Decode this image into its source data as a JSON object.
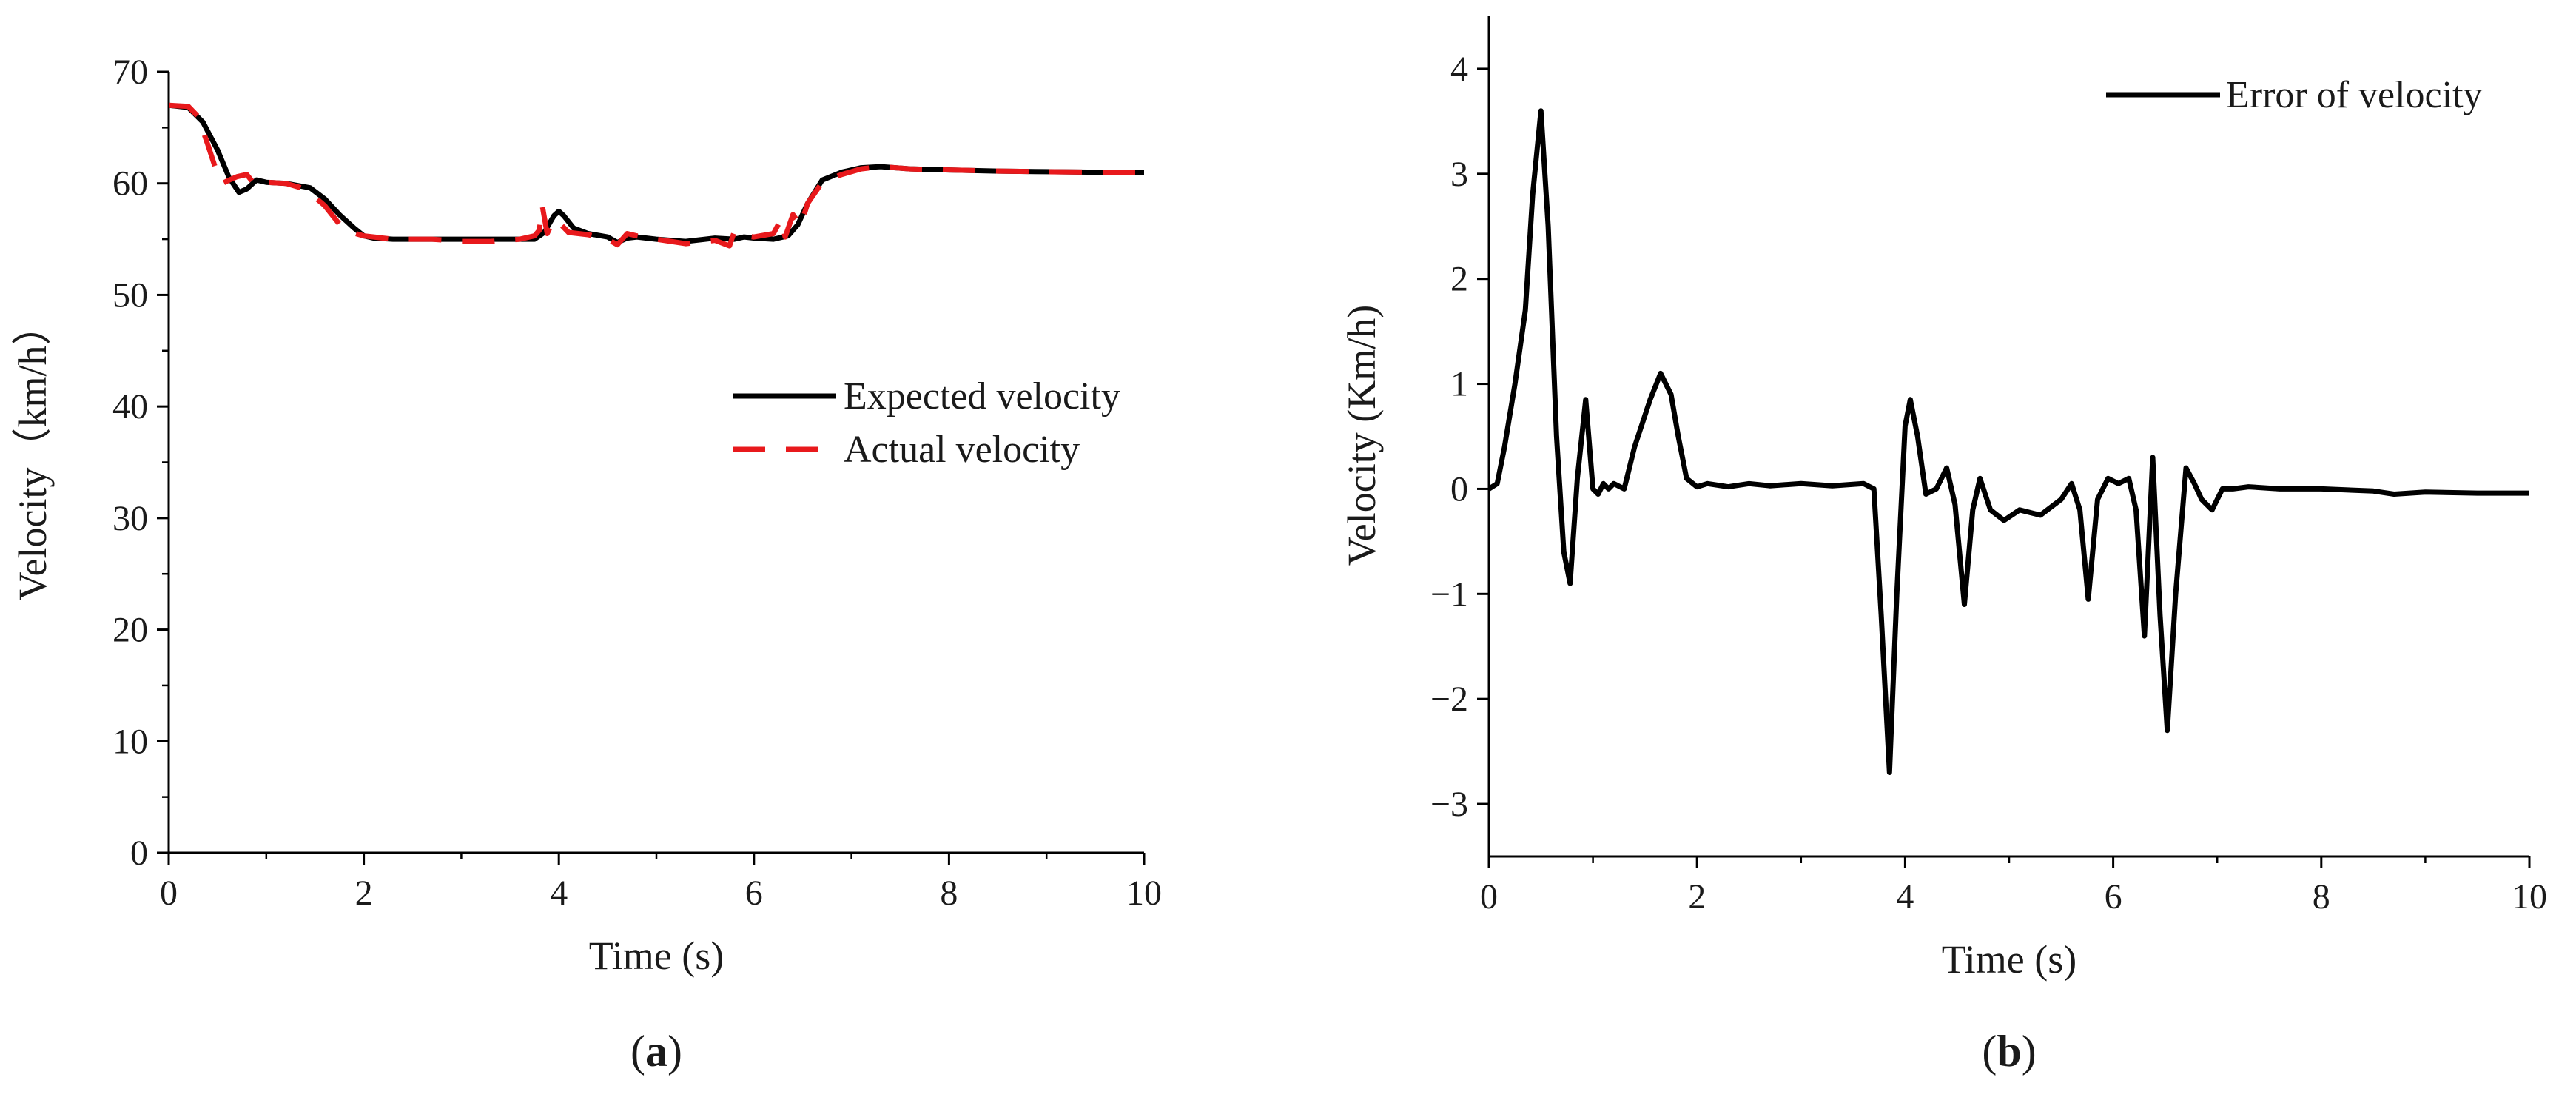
{
  "colors": {
    "expected": "#000000",
    "actual": "#e8191c",
    "error": "#000000"
  },
  "chart_data": [
    {
      "panel_label_prefix": "(",
      "panel_label_letter": "a",
      "panel_label_suffix": ")",
      "type": "line",
      "xlabel": "Time (s)",
      "ylabel": "Velocity（km/h）",
      "xlim": [
        0,
        10
      ],
      "ylim": [
        0,
        70
      ],
      "xticks": [
        "0",
        "2",
        "4",
        "6",
        "8",
        "10"
      ],
      "yticks": [
        "0",
        "10",
        "20",
        "30",
        "40",
        "50",
        "60",
        "70"
      ],
      "legend": {
        "placement": "center-right"
      },
      "series": [
        {
          "name": "Expected velocity",
          "style": "solid",
          "x": [
            0,
            0.2,
            0.35,
            0.5,
            0.62,
            0.72,
            0.8,
            0.9,
            1.0,
            1.2,
            1.45,
            1.6,
            1.75,
            1.9,
            2.0,
            2.1,
            2.3,
            2.6,
            3.0,
            3.5,
            3.75,
            3.85,
            3.95,
            4.0,
            4.05,
            4.15,
            4.3,
            4.5,
            4.6,
            4.7,
            4.8,
            5.0,
            5.3,
            5.6,
            5.8,
            5.9,
            6.0,
            6.2,
            6.35,
            6.45,
            6.55,
            6.7,
            6.9,
            7.1,
            7.3,
            7.6,
            8.0,
            8.5,
            9.0,
            9.5,
            10.0
          ],
          "y": [
            67,
            66.8,
            65.5,
            63,
            60.5,
            59.2,
            59.5,
            60.3,
            60.1,
            60.0,
            59.6,
            58.6,
            57.2,
            56,
            55.3,
            55.1,
            55,
            55,
            55,
            55,
            55,
            55.6,
            57.1,
            57.5,
            57.1,
            56,
            55.5,
            55.2,
            54.7,
            55.1,
            55.2,
            55,
            54.8,
            55.1,
            55,
            55.2,
            55.1,
            55,
            55.3,
            56.3,
            58.2,
            60.3,
            61,
            61.4,
            61.5,
            61.3,
            61.2,
            61.1,
            61.05,
            61.0,
            61.0
          ]
        },
        {
          "name": "Actual velocity",
          "style": "dashed",
          "x": [
            0,
            0.2,
            0.3,
            0.4,
            0.5,
            0.55,
            0.62,
            0.7,
            0.8,
            0.9,
            1.0,
            1.2,
            1.4,
            1.6,
            1.8,
            2.0,
            2.3,
            2.7,
            3.0,
            3.3,
            3.6,
            3.75,
            3.8,
            3.83,
            3.88,
            3.95,
            4.0,
            4.1,
            4.3,
            4.5,
            4.6,
            4.7,
            4.8,
            5.0,
            5.3,
            5.6,
            5.75,
            5.8,
            5.9,
            6.0,
            6.2,
            6.28,
            6.32,
            6.4,
            6.48,
            6.55,
            6.7,
            6.9,
            7.1,
            7.3,
            7.6,
            8.0,
            8.5,
            9.0,
            9.5,
            10.0
          ],
          "y": [
            67,
            66.9,
            66,
            63.5,
            60.8,
            60,
            60.3,
            60.6,
            60.8,
            59.7,
            60.1,
            60.0,
            59.5,
            58.0,
            55.8,
            55.3,
            55,
            55,
            54.8,
            54.8,
            55,
            55.3,
            55.8,
            58.0,
            55.5,
            56.8,
            56.5,
            55.6,
            55.4,
            55.0,
            54.5,
            55.5,
            55.3,
            55.0,
            54.6,
            54.9,
            54.4,
            55.7,
            55.3,
            55.2,
            55.5,
            56.8,
            55.2,
            57.2,
            56.2,
            58.2,
            60.1,
            60.8,
            61.3,
            61.5,
            61.3,
            61.2,
            61.1,
            61.05,
            61.0,
            61.0
          ]
        }
      ]
    },
    {
      "panel_label_prefix": "(",
      "panel_label_letter": "b",
      "panel_label_suffix": ")",
      "type": "line",
      "xlabel": "Time (s)",
      "ylabel": "Velocity (Km/h)",
      "xlim": [
        0,
        10
      ],
      "ylim": [
        -3.5,
        4.5
      ],
      "xticks": [
        "0",
        "2",
        "4",
        "6",
        "8",
        "10"
      ],
      "yticks": [
        "−3",
        "−2",
        "−1",
        "0",
        "1",
        "2",
        "3",
        "4"
      ],
      "legend": {
        "placement": "top-right"
      },
      "series": [
        {
          "name": "Error of velocity",
          "style": "solid",
          "x": [
            0,
            0.08,
            0.15,
            0.25,
            0.35,
            0.42,
            0.5,
            0.57,
            0.65,
            0.72,
            0.78,
            0.85,
            0.93,
            1.0,
            1.05,
            1.1,
            1.15,
            1.2,
            1.3,
            1.4,
            1.55,
            1.65,
            1.75,
            1.82,
            1.9,
            2.0,
            2.1,
            2.3,
            2.5,
            2.7,
            3.0,
            3.3,
            3.6,
            3.7,
            3.77,
            3.85,
            3.92,
            4.0,
            4.05,
            4.12,
            4.2,
            4.3,
            4.4,
            4.48,
            4.57,
            4.65,
            4.72,
            4.82,
            4.95,
            5.1,
            5.3,
            5.5,
            5.6,
            5.68,
            5.76,
            5.85,
            5.95,
            6.05,
            6.15,
            6.22,
            6.3,
            6.38,
            6.45,
            6.52,
            6.6,
            6.7,
            6.78,
            6.85,
            6.95,
            7.05,
            7.15,
            7.3,
            7.6,
            8.0,
            8.5,
            8.7,
            9.0,
            9.5,
            10.0
          ],
          "y": [
            0,
            0.05,
            0.4,
            1.0,
            1.7,
            2.8,
            3.6,
            2.5,
            0.5,
            -0.6,
            -0.9,
            0.1,
            0.85,
            0.0,
            -0.05,
            0.05,
            0.0,
            0.05,
            0.0,
            0.4,
            0.85,
            1.1,
            0.9,
            0.5,
            0.1,
            0.02,
            0.05,
            0.02,
            0.05,
            0.03,
            0.05,
            0.03,
            0.05,
            0.0,
            -1.2,
            -2.7,
            -1.0,
            0.6,
            0.85,
            0.5,
            -0.05,
            0.0,
            0.2,
            -0.15,
            -1.1,
            -0.2,
            0.1,
            -0.2,
            -0.3,
            -0.2,
            -0.25,
            -0.1,
            0.05,
            -0.2,
            -1.05,
            -0.1,
            0.1,
            0.05,
            0.1,
            -0.2,
            -1.4,
            0.3,
            -1.2,
            -2.3,
            -1.0,
            0.2,
            0.05,
            -0.1,
            -0.2,
            0.0,
            0.0,
            0.02,
            0.0,
            0.0,
            -0.02,
            -0.05,
            -0.03,
            -0.04,
            -0.04
          ]
        }
      ]
    }
  ]
}
